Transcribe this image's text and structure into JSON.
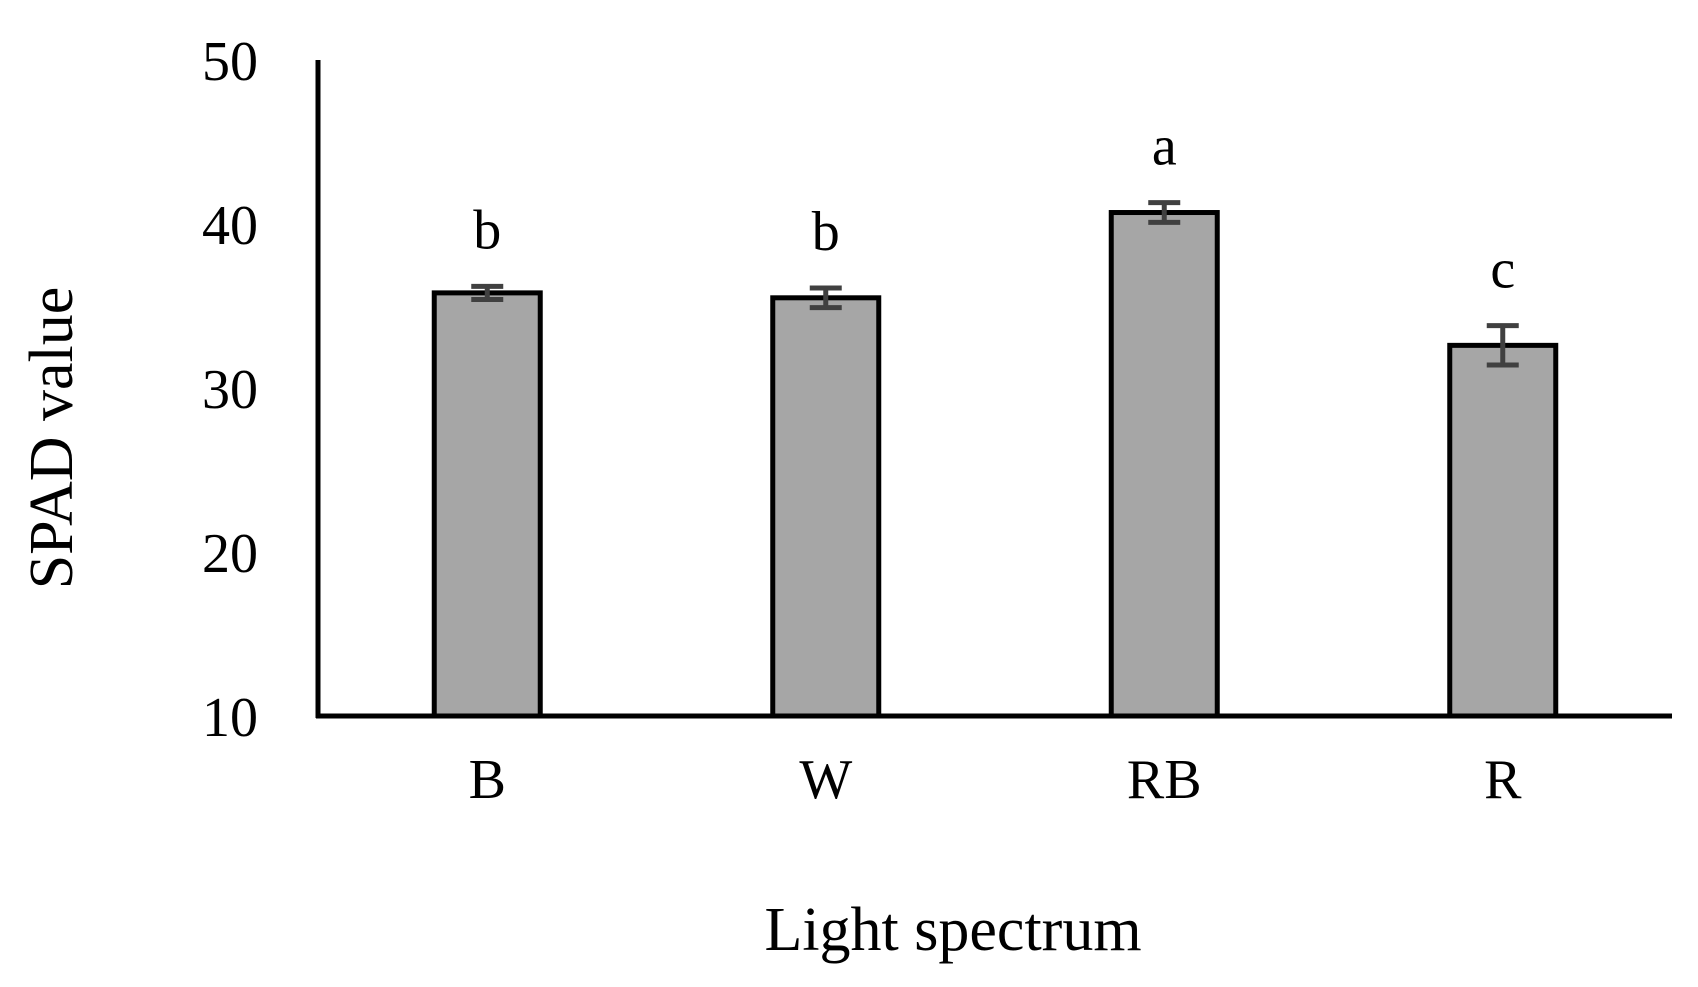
{
  "chart_data": {
    "type": "bar",
    "title": "",
    "xlabel": "Light spectrum",
    "ylabel": "SPAD value",
    "ylim": [
      10,
      50
    ],
    "yticks": [
      10,
      20,
      30,
      40,
      50
    ],
    "grid": false,
    "legend": "none",
    "categories": [
      "B",
      "W",
      "RB",
      "R"
    ],
    "values": [
      35.8,
      35.5,
      40.7,
      32.6
    ],
    "errors": [
      0.4,
      0.6,
      0.6,
      1.2
    ],
    "significance": [
      "b",
      "b",
      "a",
      "c"
    ],
    "colors": {
      "bar_fill": "#a6a6a6",
      "bar_stroke": "#000000",
      "error_bar": "#404040",
      "axis": "#000000"
    }
  }
}
